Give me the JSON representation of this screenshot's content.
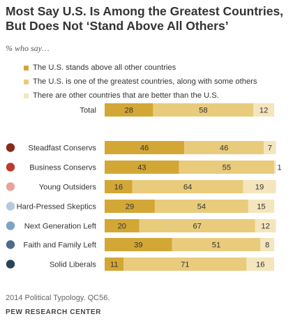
{
  "title": "Most Say U.S. Is Among the Greatest Countries, But Does Not ‘Stand Above All Others’",
  "subtitle": "% who say…",
  "footer": {
    "note": "2014 Political Typology. QC56.",
    "source": "PEW RESEARCH CENTER"
  },
  "colors": {
    "series": [
      "#d3a736",
      "#e9cb7c",
      "#f4e5bd"
    ],
    "markers": [
      "#8a2a1f",
      "#c0392b",
      "#e8a39c",
      "#b8c9de",
      "#7ea3c4",
      "#4b6e8e",
      "#2a4458"
    ],
    "value_text": "#333333"
  },
  "chart_data": {
    "type": "bar",
    "orientation": "horizontal",
    "stacked": true,
    "categories": [
      "Total",
      "Steadfast Conservs",
      "Business Conservs",
      "Young Outsiders",
      "Hard-Pressed Skeptics",
      "Next Generation Left",
      "Faith and Family Left",
      "Solid Liberals"
    ],
    "series": [
      {
        "name": "The U.S. stands above all other countries",
        "values": [
          28,
          46,
          43,
          16,
          29,
          20,
          39,
          11
        ]
      },
      {
        "name": "The U.S. is one of the greatest countries, along with some others",
        "values": [
          58,
          46,
          55,
          64,
          54,
          67,
          51,
          71
        ]
      },
      {
        "name": "There are other countries that are better than the U.S.",
        "values": [
          12,
          7,
          1,
          19,
          15,
          12,
          8,
          16
        ]
      }
    ],
    "xlim": [
      0,
      100
    ],
    "grid": false,
    "legend": "top-left"
  }
}
